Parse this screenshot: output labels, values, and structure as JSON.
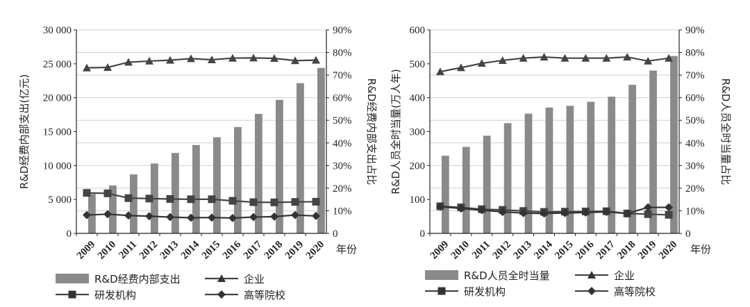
{
  "chart_data": [
    {
      "type": "bar",
      "categories": [
        "2009",
        "2010",
        "2011",
        "2012",
        "2013",
        "2014",
        "2015",
        "2016",
        "2017",
        "2018",
        "2019",
        "2020"
      ],
      "x_unit": "年份",
      "ylabel": "R&D经费内部支出(亿元)",
      "y2label": "R&D经费内部支出占比",
      "ylim": [
        0,
        30000
      ],
      "y2lim": [
        0,
        90
      ],
      "y_ticks": [
        "0",
        "5 000",
        "10 000",
        "15 000",
        "20 000",
        "25 000",
        "30 000"
      ],
      "y2_ticks": [
        "0",
        "10%",
        "20%",
        "30%",
        "40%",
        "50%",
        "60%",
        "70%",
        "80%",
        "90%"
      ],
      "bar_series": {
        "name": "R&D经费内部支出",
        "color": "#8a8a8a",
        "values": [
          5800,
          7060,
          8690,
          10300,
          11850,
          13020,
          14170,
          15680,
          17610,
          19680,
          22140,
          24390
        ]
      },
      "line_series": [
        {
          "name": "企业",
          "marker": "triangle",
          "color": "#444444",
          "values": [
            73.2,
            73.4,
            75.7,
            76.2,
            76.6,
            77.3,
            76.8,
            77.5,
            77.6,
            77.4,
            76.4,
            76.6
          ]
        },
        {
          "name": "研发机构",
          "marker": "square",
          "color": "#444444",
          "values": [
            17.9,
            17.7,
            15.6,
            15.4,
            15.2,
            15.1,
            15.1,
            14.4,
            13.8,
            13.7,
            13.9,
            14.0
          ]
        },
        {
          "name": "高等院校",
          "marker": "diamond",
          "color": "#333333",
          "values": [
            8.1,
            8.5,
            7.9,
            7.6,
            7.2,
            6.9,
            7.0,
            6.8,
            7.2,
            7.4,
            8.1,
            7.7
          ]
        }
      ],
      "legend": [
        {
          "label": "R&D经费内部支出",
          "kind": "bar"
        },
        {
          "label": "企业",
          "kind": "triangle"
        },
        {
          "label": "研发机构",
          "kind": "square"
        },
        {
          "label": "高等院校",
          "kind": "diamond"
        }
      ],
      "grid": true
    },
    {
      "type": "bar",
      "categories": [
        "2009",
        "2010",
        "2011",
        "2012",
        "2013",
        "2014",
        "2015",
        "2016",
        "2017",
        "2018",
        "2019",
        "2020"
      ],
      "x_unit": "年份",
      "ylabel": "R&D人员全时当量(万人年)",
      "y2label": "R&D人员全时当量占比",
      "ylim": [
        0,
        600
      ],
      "y2lim": [
        0,
        90
      ],
      "y_ticks": [
        "0",
        "100",
        "200",
        "300",
        "400",
        "500",
        "600"
      ],
      "y2_ticks": [
        "0",
        "10%",
        "20%",
        "30%",
        "40%",
        "50%",
        "60%",
        "70%",
        "80%",
        "90%"
      ],
      "bar_series": {
        "name": "R&D人员全时当量",
        "color": "#8a8a8a",
        "values": [
          229,
          255,
          288,
          325,
          353,
          371,
          376,
          388,
          403,
          438,
          480,
          523
        ]
      },
      "line_series": [
        {
          "name": "企业",
          "marker": "triangle",
          "color": "#444444",
          "values": [
            71.5,
            73.3,
            75.2,
            76.5,
            77.5,
            78.0,
            77.5,
            77.5,
            77.5,
            78.0,
            76.2,
            77.5
          ]
        },
        {
          "name": "研发机构",
          "marker": "square",
          "color": "#444444",
          "values": [
            12.0,
            11.5,
            10.7,
            10.4,
            9.9,
            9.5,
            9.6,
            9.7,
            9.8,
            8.8,
            8.5,
            8.2
          ]
        },
        {
          "name": "高等院校",
          "marker": "diamond",
          "color": "#333333",
          "values": [
            11.8,
            11.0,
            10.3,
            9.5,
            9.0,
            8.8,
            9.0,
            9.2,
            9.5,
            8.8,
            11.5,
            11.5
          ]
        }
      ],
      "legend": [
        {
          "label": "R&D人员全时当量",
          "kind": "bar"
        },
        {
          "label": "企业",
          "kind": "triangle"
        },
        {
          "label": "研发机构",
          "kind": "square"
        },
        {
          "label": "高等院校",
          "kind": "diamond"
        }
      ],
      "grid": true
    }
  ]
}
